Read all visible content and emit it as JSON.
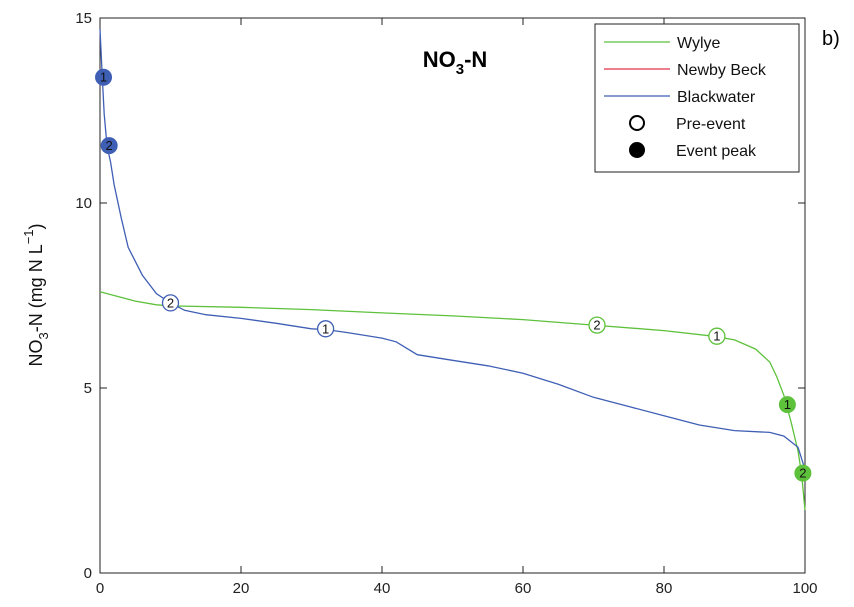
{
  "panel_label": "b)",
  "chart_data": {
    "type": "line",
    "title": "NO3-N",
    "title_parts": {
      "main": "NO",
      "sub": "3",
      "tail": "-N"
    },
    "xlabel": "",
    "ylabel": "NO3-N (mg N L-1)",
    "ylabel_parts": {
      "a": "NO",
      "sub": "3",
      "b": "-N (mg N L",
      "sup": "−1",
      "c": ")"
    },
    "xlim": [
      0,
      100
    ],
    "ylim": [
      0,
      15
    ],
    "xticks": [
      0,
      20,
      40,
      60,
      80,
      100
    ],
    "yticks": [
      0,
      5,
      10,
      15
    ],
    "grid": false,
    "legend_position": "top-right",
    "legend": [
      {
        "label": "Wylye",
        "kind": "line",
        "color": "#5ec13c"
      },
      {
        "label": "Newby Beck",
        "kind": "line",
        "color": "#e0304a"
      },
      {
        "label": "Blackwater",
        "kind": "line",
        "color": "#3f5fb5"
      },
      {
        "label": "Pre-event",
        "kind": "open-marker",
        "color": "#000000"
      },
      {
        "label": "Event peak",
        "kind": "filled-marker",
        "color": "#000000"
      }
    ],
    "series": [
      {
        "name": "Wylye",
        "color": "#5ec13c",
        "x": [
          0,
          2,
          5,
          8,
          10,
          20,
          30,
          40,
          50,
          60,
          70,
          80,
          87,
          90,
          93,
          95,
          96,
          97,
          98,
          99,
          99.5,
          100
        ],
        "y": [
          7.6,
          7.5,
          7.35,
          7.25,
          7.22,
          7.18,
          7.12,
          7.03,
          6.95,
          6.85,
          6.7,
          6.55,
          6.4,
          6.3,
          6.05,
          5.7,
          5.3,
          4.8,
          4.1,
          3.3,
          2.7,
          1.7
        ]
      },
      {
        "name": "Blackwater",
        "color": "#3f5fb5",
        "x": [
          0,
          0.3,
          0.6,
          1,
          1.5,
          2,
          3,
          4,
          6,
          8,
          10,
          12,
          15,
          20,
          25,
          30,
          32,
          35,
          40,
          42,
          45,
          50,
          55,
          60,
          65,
          70,
          75,
          80,
          85,
          90,
          95,
          97,
          99,
          100
        ],
        "y": [
          14.7,
          13.5,
          12.4,
          11.55,
          11.1,
          10.5,
          9.6,
          8.8,
          8.05,
          7.55,
          7.3,
          7.1,
          6.98,
          6.88,
          6.75,
          6.6,
          6.58,
          6.5,
          6.35,
          6.25,
          5.9,
          5.75,
          5.6,
          5.4,
          5.1,
          4.75,
          4.5,
          4.25,
          4.0,
          3.85,
          3.8,
          3.7,
          3.4,
          2.8
        ]
      }
    ],
    "markers": [
      {
        "series": "Blackwater",
        "kind": "event-peak",
        "label": "1",
        "x": 0.5,
        "y": 13.4
      },
      {
        "series": "Blackwater",
        "kind": "event-peak",
        "label": "2",
        "x": 1.3,
        "y": 11.55
      },
      {
        "series": "Blackwater",
        "kind": "pre-event",
        "label": "2",
        "x": 10,
        "y": 7.3
      },
      {
        "series": "Blackwater",
        "kind": "pre-event",
        "label": "1",
        "x": 32,
        "y": 6.6
      },
      {
        "series": "Wylye",
        "kind": "pre-event",
        "label": "2",
        "x": 70.5,
        "y": 6.7
      },
      {
        "series": "Wylye",
        "kind": "pre-event",
        "label": "1",
        "x": 87.5,
        "y": 6.4
      },
      {
        "series": "Wylye",
        "kind": "event-peak",
        "label": "1",
        "x": 97.5,
        "y": 4.55
      },
      {
        "series": "Wylye",
        "kind": "event-peak",
        "label": "2",
        "x": 99.7,
        "y": 2.7
      }
    ]
  }
}
